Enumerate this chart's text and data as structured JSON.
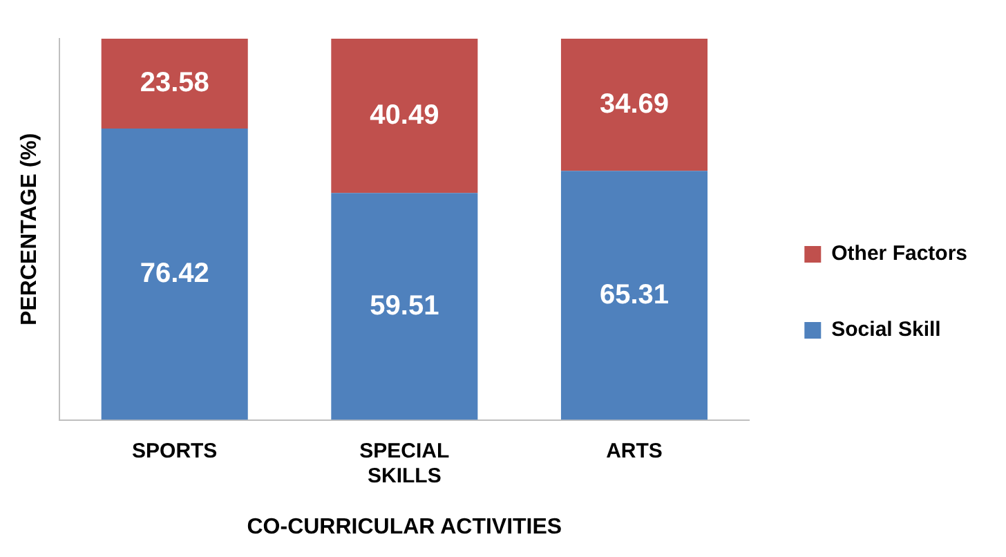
{
  "chart_data": {
    "type": "bar",
    "stacked": true,
    "xlabel": "CO-CURRICULAR ACTIVITIES",
    "ylabel": "PERCENTAGE (%)",
    "categories": [
      "SPORTS",
      "SPECIAL SKILLS",
      "ARTS"
    ],
    "series": [
      {
        "name": "Social Skill",
        "color": "#4f81bd",
        "values": [
          76.42,
          59.51,
          65.31
        ]
      },
      {
        "name": "Other Factors",
        "color": "#c0504d",
        "values": [
          23.58,
          40.49,
          34.69
        ]
      }
    ],
    "data_labels": true,
    "legend": "right",
    "grid": false,
    "tick_labels": "x"
  }
}
